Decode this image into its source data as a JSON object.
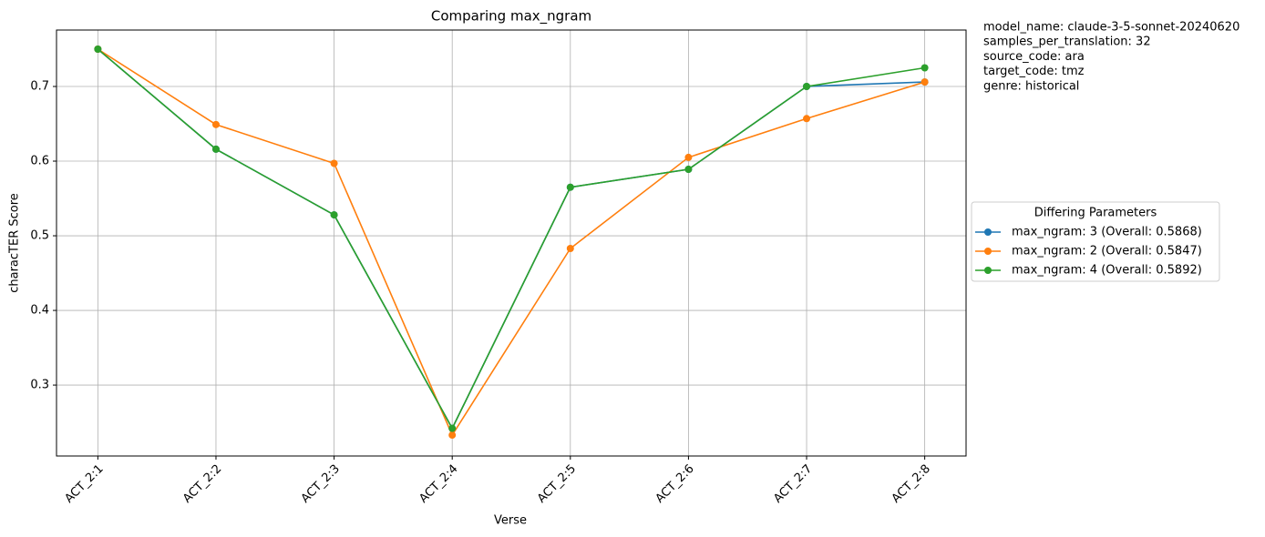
{
  "chart_data": {
    "type": "line",
    "title": "Comparing max_ngram",
    "xlabel": "Verse",
    "ylabel": "characTER Score",
    "categories": [
      "ACT_2:1",
      "ACT_2:2",
      "ACT_2:3",
      "ACT_2:4",
      "ACT_2:5",
      "ACT_2:6",
      "ACT_2:7",
      "ACT_2:8"
    ],
    "series": [
      {
        "name": "max_ngram: 3 (Overall: 0.5868)",
        "color": "#1f77b4",
        "values": [
          0.75,
          0.616,
          0.528,
          0.242,
          0.565,
          0.589,
          0.7,
          0.706
        ]
      },
      {
        "name": "max_ngram: 2 (Overall: 0.5847)",
        "color": "#ff7f0e",
        "values": [
          0.75,
          0.649,
          0.597,
          0.233,
          0.483,
          0.605,
          0.657,
          0.706
        ]
      },
      {
        "name": "max_ngram: 4 (Overall: 0.5892)",
        "color": "#2ca02c",
        "values": [
          0.75,
          0.616,
          0.528,
          0.242,
          0.565,
          0.589,
          0.7,
          0.725
        ]
      }
    ],
    "ylim": [
      0.205,
      0.7756
    ],
    "yticks": [
      0.3,
      0.4,
      0.5,
      0.6,
      0.7
    ],
    "grid": true,
    "legend_title": "Differing Parameters",
    "legend_position": "right",
    "annotations": [
      "model_name: claude-3-5-sonnet-20240620",
      "samples_per_translation: 32",
      "source_code: ara",
      "target_code: tmz",
      "genre: historical"
    ]
  }
}
